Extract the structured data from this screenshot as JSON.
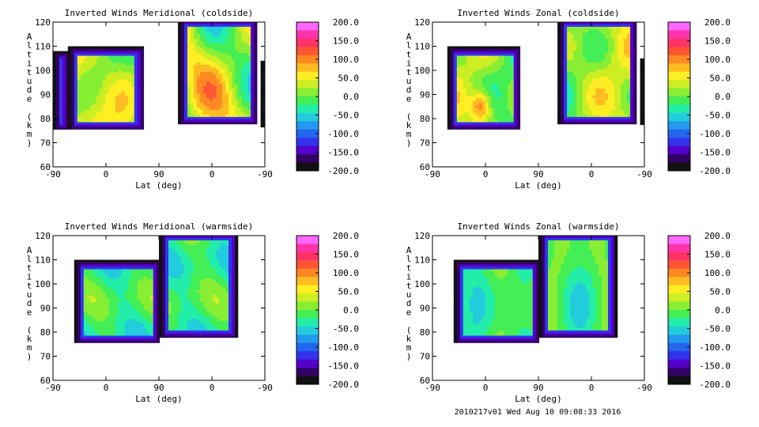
{
  "figure": {
    "footer": "2010217v01 Wed Aug 10 09:08:33 2016"
  },
  "colorbar": {
    "ticks": [
      "200.0",
      "150.0",
      "100.0",
      "50.0",
      "0.0",
      "-50.0",
      "-100.0",
      "-150.0",
      "-200.0"
    ],
    "colors": [
      "#ff66ff",
      "#ff33aa",
      "#ff3366",
      "#ff5533",
      "#ff8822",
      "#ffbb22",
      "#ffee22",
      "#ccee22",
      "#88ee33",
      "#44ee55",
      "#22eeaa",
      "#22ccdd",
      "#2299ee",
      "#2266ee",
      "#3333ee",
      "#5500cc",
      "#330066",
      "#111111"
    ]
  },
  "chart_data": [
    {
      "type": "heatmap",
      "title": "Inverted Winds Meridional (coldside)",
      "xlabel": "Lat (deg)",
      "ylabel": "Altitude (km)",
      "xticks": [
        "-90",
        "0",
        "90",
        "0",
        "-90"
      ],
      "yticks": [
        "60",
        "70",
        "80",
        "90",
        "100",
        "110",
        "120"
      ],
      "ylim": [
        60,
        120
      ],
      "colorbar_range": [
        -200,
        200
      ]
    },
    {
      "type": "heatmap",
      "title": "Inverted Winds Zonal (coldside)",
      "xlabel": "Lat (deg)",
      "ylabel": "Altitude (km)",
      "xticks": [
        "-90",
        "0",
        "90",
        "0",
        "-90"
      ],
      "yticks": [
        "60",
        "70",
        "80",
        "90",
        "100",
        "110",
        "120"
      ],
      "ylim": [
        60,
        120
      ],
      "colorbar_range": [
        -200,
        200
      ]
    },
    {
      "type": "heatmap",
      "title": "Inverted Winds Meridional (warmside)",
      "xlabel": "Lat (deg)",
      "ylabel": "Altitude (km)",
      "xticks": [
        "-90",
        "0",
        "90",
        "0",
        "-90"
      ],
      "yticks": [
        "60",
        "70",
        "80",
        "90",
        "100",
        "110",
        "120"
      ],
      "ylim": [
        60,
        120
      ],
      "colorbar_range": [
        -200,
        200
      ]
    },
    {
      "type": "heatmap",
      "title": "Inverted Winds Zonal (warmside)",
      "xlabel": "Lat (deg)",
      "ylabel": "Altitude (km)",
      "xticks": [
        "-90",
        "0",
        "90",
        "0",
        "-90"
      ],
      "yticks": [
        "60",
        "70",
        "80",
        "90",
        "100",
        "110",
        "120"
      ],
      "ylim": [
        60,
        120
      ],
      "colorbar_range": [
        -200,
        200
      ]
    }
  ]
}
